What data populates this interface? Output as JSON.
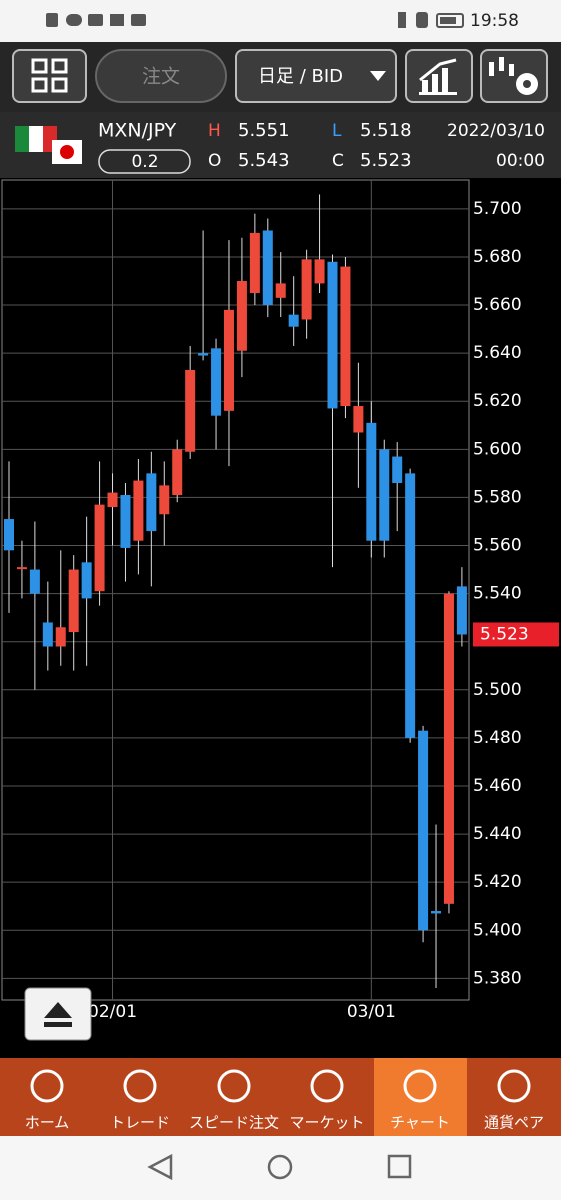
{
  "status_bar": {
    "time": "19:58"
  },
  "toolbar": {
    "order": "注文",
    "period": "日足 / BID"
  },
  "quote": {
    "pair": "MXN/JPY",
    "spread": "0.2",
    "high_label": "H",
    "high": "5.551",
    "low_label": "L",
    "low": "5.518",
    "open_label": "O",
    "open": "5.543",
    "close_label": "C",
    "close": "5.523",
    "date": "2022/03/10",
    "time": "00:00"
  },
  "chart_data": {
    "type": "candlestick",
    "categories": [
      null,
      null,
      null,
      null,
      null,
      null,
      null,
      null,
      "02/01",
      null,
      null,
      null,
      null,
      null,
      null,
      null,
      null,
      null,
      null,
      null,
      null,
      null,
      null,
      null,
      null,
      null,
      null,
      null,
      "03/01",
      null,
      null,
      null,
      null,
      null,
      null,
      null
    ],
    "open": [
      5.571,
      5.551,
      5.55,
      5.528,
      5.518,
      5.524,
      5.553,
      5.541,
      5.576,
      5.581,
      5.562,
      5.59,
      5.573,
      5.581,
      5.599,
      5.64,
      5.642,
      5.616,
      5.641,
      5.665,
      5.691,
      5.663,
      5.656,
      5.654,
      5.669,
      5.678,
      5.618,
      5.607,
      5.611,
      5.6,
      5.597,
      5.59,
      5.483,
      5.408,
      5.411,
      5.543
    ],
    "high": [
      5.595,
      5.562,
      5.57,
      5.545,
      5.558,
      5.556,
      5.572,
      5.595,
      5.59,
      5.586,
      5.596,
      5.599,
      5.595,
      5.604,
      5.643,
      5.691,
      5.646,
      5.687,
      5.688,
      5.698,
      5.696,
      5.682,
      5.672,
      5.683,
      5.706,
      5.681,
      5.68,
      5.636,
      5.62,
      5.604,
      5.603,
      5.592,
      5.485,
      5.444,
      5.541,
      5.551
    ],
    "low": [
      5.532,
      5.538,
      5.5,
      5.508,
      5.51,
      5.508,
      5.51,
      5.535,
      5.56,
      5.545,
      5.548,
      5.543,
      5.56,
      5.578,
      5.596,
      5.637,
      5.6,
      5.593,
      5.63,
      5.66,
      5.655,
      5.655,
      5.643,
      5.646,
      5.665,
      5.551,
      5.613,
      5.584,
      5.555,
      5.555,
      5.566,
      5.478,
      5.395,
      5.376,
      5.407,
      5.518
    ],
    "close": [
      5.558,
      5.551,
      5.54,
      5.518,
      5.526,
      5.55,
      5.538,
      5.577,
      5.582,
      5.559,
      5.587,
      5.566,
      5.585,
      5.6,
      5.633,
      5.639,
      5.614,
      5.658,
      5.67,
      5.69,
      5.66,
      5.669,
      5.651,
      5.679,
      5.679,
      5.617,
      5.676,
      5.618,
      5.562,
      5.562,
      5.586,
      5.48,
      5.4,
      5.407,
      5.54,
      5.523
    ],
    "up_color": "#ee4a3c",
    "down_color": "#2d92e6",
    "ylim": [
      5.371,
      5.712
    ],
    "yticks": [
      {
        "value": 5.38,
        "label": "5.380"
      },
      {
        "value": 5.4,
        "label": "5.400"
      },
      {
        "value": 5.42,
        "label": "5.420"
      },
      {
        "value": 5.44,
        "label": "5.440"
      },
      {
        "value": 5.46,
        "label": "5.460"
      },
      {
        "value": 5.48,
        "label": "5.480"
      },
      {
        "value": 5.5,
        "label": "5.500"
      },
      {
        "value": 5.52,
        "label": "5.520"
      },
      {
        "value": 5.54,
        "label": "5.540"
      },
      {
        "value": 5.56,
        "label": "5.560"
      },
      {
        "value": 5.58,
        "label": "5.580"
      },
      {
        "value": 5.6,
        "label": "5.600"
      },
      {
        "value": 5.62,
        "label": "5.620"
      },
      {
        "value": 5.64,
        "label": "5.640"
      },
      {
        "value": 5.66,
        "label": "5.660"
      },
      {
        "value": 5.68,
        "label": "5.680"
      },
      {
        "value": 5.7,
        "label": "5.700"
      }
    ],
    "last_price": 5.523,
    "last_price_color": "#e8202a",
    "grid": true
  },
  "nav": {
    "items": [
      "ホーム",
      "トレード",
      "スピード注文",
      "マーケット",
      "チャート",
      "通貨ペア"
    ]
  }
}
